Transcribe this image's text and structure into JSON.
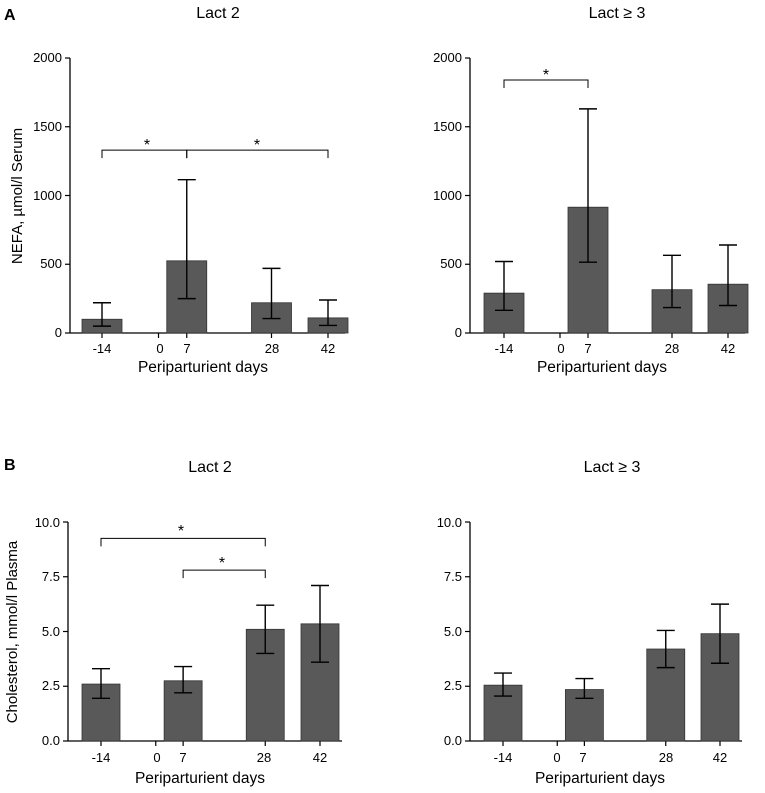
{
  "panel_labels": [
    "A",
    "B"
  ],
  "chart_data": [
    {
      "type": "bar",
      "panel": "A",
      "title": "Lact 2",
      "xlabel": "Periparturient days",
      "ylabel": "NEFA, µmol/l Serum",
      "ylim": [
        0,
        2000
      ],
      "yticks": [
        "0",
        "500",
        "1000",
        "1500",
        "2000"
      ],
      "yticks_values": [
        0,
        500,
        1000,
        1500,
        2000
      ],
      "xticks": [
        "-14",
        "0",
        "7",
        "28",
        "42"
      ],
      "xticks_values": [
        -14,
        0,
        7,
        28,
        42
      ],
      "x": [
        -14,
        7,
        28,
        42
      ],
      "values": [
        100,
        525,
        220,
        110
      ],
      "err_low": [
        50,
        250,
        105,
        55
      ],
      "err_high": [
        220,
        1115,
        470,
        240
      ],
      "significance": [
        {
          "from": -14,
          "to": 7,
          "y": 1330,
          "label": "*"
        },
        {
          "from": 7,
          "to": 42,
          "y": 1330,
          "label": "*"
        }
      ]
    },
    {
      "type": "bar",
      "panel": "A",
      "title": "Lact ≥ 3",
      "xlabel": "Periparturient days",
      "ylabel": "",
      "ylim": [
        0,
        2000
      ],
      "yticks": [
        "0",
        "500",
        "1000",
        "1500",
        "2000"
      ],
      "yticks_values": [
        0,
        500,
        1000,
        1500,
        2000
      ],
      "xticks": [
        "-14",
        "0",
        "7",
        "28",
        "42"
      ],
      "xticks_values": [
        -14,
        0,
        7,
        28,
        42
      ],
      "x": [
        -14,
        7,
        28,
        42
      ],
      "values": [
        290,
        915,
        315,
        355
      ],
      "err_low": [
        165,
        515,
        185,
        200
      ],
      "err_high": [
        520,
        1630,
        565,
        640
      ],
      "significance": [
        {
          "from": -14,
          "to": 7,
          "y": 1840,
          "label": "*"
        }
      ]
    },
    {
      "type": "bar",
      "panel": "B",
      "title": "Lact 2",
      "xlabel": "Periparturient days",
      "ylabel": "Cholesterol, mmol/l Plasma",
      "ylim": [
        0,
        10
      ],
      "yticks": [
        "0.0",
        "2.5",
        "5.0",
        "7.5",
        "10.0"
      ],
      "yticks_values": [
        0,
        2.5,
        5,
        7.5,
        10
      ],
      "xticks": [
        "-14",
        "0",
        "7",
        "28",
        "42"
      ],
      "xticks_values": [
        -14,
        0,
        7,
        28,
        42
      ],
      "x": [
        -14,
        7,
        28,
        42
      ],
      "values": [
        2.6,
        2.75,
        5.1,
        5.35
      ],
      "err_low": [
        1.95,
        2.2,
        4.0,
        3.6
      ],
      "err_high": [
        3.3,
        3.4,
        6.2,
        7.1
      ],
      "significance": [
        {
          "from": -14,
          "to": 28,
          "y": 9.25,
          "label": "*"
        },
        {
          "from": 7,
          "to": 28,
          "y": 7.8,
          "label": "*"
        }
      ]
    },
    {
      "type": "bar",
      "panel": "B",
      "title": "Lact ≥ 3",
      "xlabel": "Periparturient days",
      "ylabel": "",
      "ylim": [
        0,
        10
      ],
      "yticks": [
        "0.0",
        "2.5",
        "5.0",
        "7.5",
        "10.0"
      ],
      "yticks_values": [
        0,
        2.5,
        5,
        7.5,
        10
      ],
      "xticks": [
        "-14",
        "0",
        "7",
        "28",
        "42"
      ],
      "xticks_values": [
        -14,
        0,
        7,
        28,
        42
      ],
      "x": [
        -14,
        7,
        28,
        42
      ],
      "values": [
        2.55,
        2.35,
        4.2,
        4.9
      ],
      "err_low": [
        2.05,
        1.95,
        3.35,
        3.55
      ],
      "err_high": [
        3.1,
        2.85,
        5.05,
        6.25
      ],
      "significance": []
    }
  ]
}
